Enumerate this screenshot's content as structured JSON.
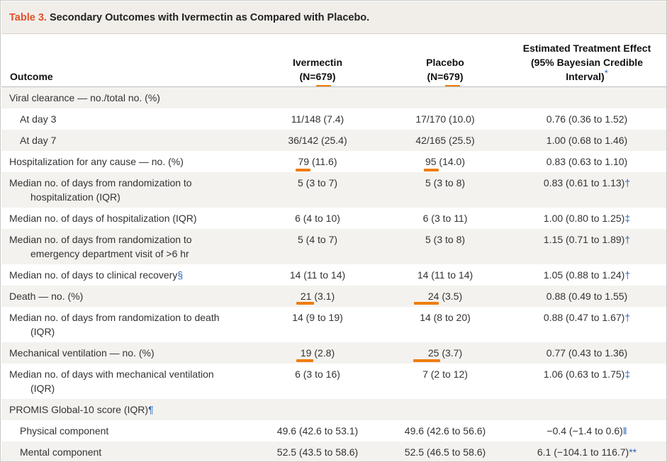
{
  "title": {
    "number": "Table 3.",
    "text": "Secondary Outcomes with Ivermectin as Compared with Placebo."
  },
  "headers": {
    "outcome": "Outcome",
    "ivermectin_line1": "Ivermectin",
    "ivermectin_line2": "(N=679)",
    "placebo_line1": "Placebo",
    "placebo_line2": "(N=679)",
    "estimate_line1": "Estimated Treatment Effect",
    "estimate_line2": "(95% Bayesian Credible",
    "estimate_line3": "Interval)",
    "estimate_marker": "*"
  },
  "rows": [
    {
      "outcome": "Viral clearance — no./total no. (%)",
      "ivermectin": "",
      "placebo": "",
      "estimate": "",
      "marker": ""
    },
    {
      "outcome": "At day 3",
      "ivermectin": "11/148 (7.4)",
      "placebo": "17/170 (10.0)",
      "estimate": "0.76 (0.36 to 1.52)",
      "marker": ""
    },
    {
      "outcome": "At day 7",
      "ivermectin": "36/142 (25.4)",
      "placebo": "42/165 (25.5)",
      "estimate": "1.00 (0.68 to 1.46)",
      "marker": ""
    },
    {
      "outcome": "Hospitalization for any cause — no. (%)",
      "ivermectin": "79 (11.6)",
      "placebo": "95 (14.0)",
      "estimate": "0.83 (0.63 to 1.10)",
      "marker": ""
    },
    {
      "outcome_line1": "Median no. of days from randomization to",
      "outcome_line2": "hospitalization (IQR)",
      "ivermectin": "5 (3 to 7)",
      "placebo": "5 (3 to 8)",
      "estimate": "0.83 (0.61 to 1.13)",
      "marker": "†"
    },
    {
      "outcome": "Median no. of days of hospitalization (IQR)",
      "ivermectin": "6 (4 to 10)",
      "placebo": "6 (3 to 11)",
      "estimate": "1.00 (0.80 to 1.25)",
      "marker": "‡"
    },
    {
      "outcome_line1": "Median no. of days from randomization to",
      "outcome_line2": "emergency department visit of >6 hr",
      "ivermectin": "5 (4 to 7)",
      "placebo": "5 (3 to 8)",
      "estimate": "1.15 (0.71 to 1.89)",
      "marker": "†"
    },
    {
      "outcome": "Median no. of days to clinical recovery",
      "outcome_marker": "§",
      "ivermectin": "14 (11 to 14)",
      "placebo": "14 (11 to 14)",
      "estimate": "1.05 (0.88 to 1.24)",
      "marker": "†"
    },
    {
      "outcome": "Death — no. (%)",
      "ivermectin": "21 (3.1)",
      "placebo": "24 (3.5)",
      "estimate": "0.88 (0.49 to 1.55)",
      "marker": ""
    },
    {
      "outcome_line1": "Median no. of days from randomization to death",
      "outcome_line2": "(IQR)",
      "ivermectin": "14 (9 to 19)",
      "placebo": "14 (8 to 20)",
      "estimate": "0.88 (0.47 to 1.67)",
      "marker": "†"
    },
    {
      "outcome": "Mechanical ventilation — no. (%)",
      "ivermectin": "19 (2.8)",
      "placebo": "25 (3.7)",
      "estimate": "0.77 (0.43 to 1.36)",
      "marker": ""
    },
    {
      "outcome_line1": "Median no. of days with mechanical ventilation",
      "outcome_line2": "(IQR)",
      "ivermectin": "6 (3 to 16)",
      "placebo": "7 (2 to 12)",
      "estimate": "1.06 (0.63 to 1.75)",
      "marker": "‡"
    },
    {
      "outcome": "PROMIS Global-10 score (IQR)",
      "outcome_marker": "¶",
      "ivermectin": "",
      "placebo": "",
      "estimate": "",
      "marker": ""
    },
    {
      "outcome": "Physical component",
      "ivermectin": "49.6 (42.6 to 53.1)",
      "placebo": "49.6 (42.6 to 56.6)",
      "estimate": "−0.4 (−1.4 to 0.6)",
      "marker": "‖"
    },
    {
      "outcome": "Mental component",
      "ivermectin": "52.5 (43.5 to 58.6)",
      "placebo": "52.5 (46.5 to 58.6)",
      "estimate": "6.1 (−104.1 to 116.7)",
      "marker": "**"
    }
  ],
  "colors": {
    "table_number": "#e2502b",
    "footnote_marker": "#2a64b8",
    "highlight_underline": "#f07c0a",
    "title_background": "#f1eeea",
    "row_shade": "#f4f2ef"
  }
}
